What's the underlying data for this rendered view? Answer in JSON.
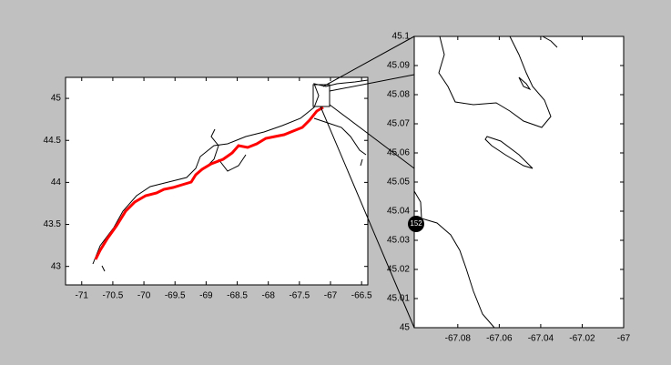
{
  "chart_data": [
    {
      "type": "map",
      "xlim": [
        -71.26,
        -66.4
      ],
      "ylim": [
        42.78,
        45.25
      ],
      "xticks": [
        -71,
        -70.5,
        -70,
        -69.5,
        -69,
        -68.5,
        -68,
        -67.5,
        -67,
        -66.5
      ],
      "yticks": [
        43,
        43.5,
        44,
        44.5,
        45
      ]
    },
    {
      "type": "map",
      "xlim": [
        -67.101,
        -67
      ],
      "ylim": [
        45,
        45.1
      ],
      "xticks": [
        -67.08,
        -67.06,
        -67.04,
        -67.02,
        -67
      ],
      "yticks": [
        45,
        45.01,
        45.02,
        45.03,
        45.04,
        45.05,
        45.06,
        45.07,
        45.08,
        45.09,
        45.1
      ],
      "annotation": "152"
    }
  ]
}
